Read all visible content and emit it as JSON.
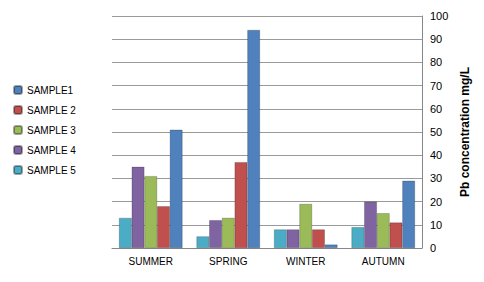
{
  "chart_data": {
    "type": "bar",
    "categories": [
      "SUMMER",
      "SPRING",
      "WINTER",
      "AUTUMN"
    ],
    "series": [
      {
        "name": "SAMPLE1",
        "color": "#4f81bd",
        "values": [
          51,
          94,
          1.5,
          29
        ]
      },
      {
        "name": "SAMPLE 2",
        "color": "#c0504d",
        "values": [
          18,
          37,
          8,
          11
        ]
      },
      {
        "name": "SAMPLE 3",
        "color": "#9bbb59",
        "values": [
          31,
          13,
          19,
          15
        ]
      },
      {
        "name": "SAMPLE 4",
        "color": "#8064a2",
        "values": [
          35,
          12,
          8,
          20
        ]
      },
      {
        "name": "SAMPLE 5",
        "color": "#4bacc6",
        "values": [
          13,
          5,
          8,
          9
        ]
      }
    ],
    "y_label": "Pb concentration mg/L",
    "ylim": [
      0,
      100
    ],
    "yticks": [
      0,
      10,
      20,
      30,
      40,
      50,
      60,
      70,
      80,
      90,
      100
    ],
    "grid": true,
    "legend": "left"
  }
}
